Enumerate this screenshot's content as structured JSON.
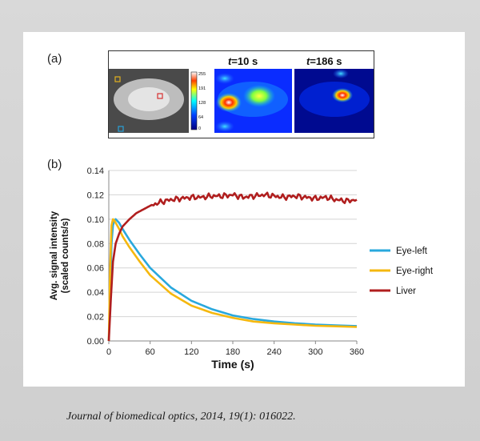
{
  "panel_a_label": "(a)",
  "panel_b_label": "(b)",
  "image_headers": {
    "t10_prefix": "t",
    "t10_value": "=10 s",
    "t186_prefix": "t",
    "t186_value": "=186 s"
  },
  "colorbar_ticks": [
    "255",
    "191",
    "128",
    "64",
    "0"
  ],
  "citation": "Journal of biomedical optics, 2014, 19(1): 016022.",
  "colors": {
    "eye_left": "#29a8dd",
    "eye_right": "#f5b80f",
    "liver": "#b01e1e",
    "roi_yellow": "#e0b020",
    "roi_red": "#d83030",
    "roi_blue": "#2aa0d8"
  },
  "chart_data": {
    "type": "line",
    "title": "",
    "xlabel": "Time (s)",
    "ylabel_line1": "Avg. signal intensity",
    "ylabel_line2": "(scaled counts/s)",
    "xlim": [
      0,
      360
    ],
    "ylim": [
      0,
      0.14
    ],
    "xticks": [
      0,
      60,
      120,
      180,
      240,
      300,
      360
    ],
    "yticks": [
      "0.00",
      "0.02",
      "0.04",
      "0.06",
      "0.08",
      "0.10",
      "0.12",
      "0.14"
    ],
    "grid": "horizontal",
    "legend_position": "right",
    "series": [
      {
        "name": "Eye-left",
        "x": [
          0,
          2,
          4,
          6,
          8,
          10,
          15,
          20,
          30,
          45,
          60,
          90,
          120,
          150,
          180,
          210,
          240,
          270,
          300,
          330,
          360
        ],
        "y": [
          0,
          0.04,
          0.08,
          0.095,
          0.099,
          0.1,
          0.097,
          0.092,
          0.083,
          0.071,
          0.06,
          0.044,
          0.033,
          0.026,
          0.021,
          0.018,
          0.016,
          0.0145,
          0.0135,
          0.0128,
          0.0122
        ]
      },
      {
        "name": "Eye-right",
        "x": [
          0,
          2,
          4,
          6,
          8,
          10,
          15,
          20,
          30,
          45,
          60,
          90,
          120,
          150,
          180,
          210,
          240,
          270,
          300,
          330,
          360
        ],
        "y": [
          0,
          0.06,
          0.095,
          0.1,
          0.099,
          0.097,
          0.092,
          0.086,
          0.077,
          0.065,
          0.054,
          0.039,
          0.029,
          0.023,
          0.019,
          0.016,
          0.0145,
          0.0135,
          0.0125,
          0.012,
          0.0115
        ]
      },
      {
        "name": "Liver",
        "x": [
          0,
          3,
          6,
          10,
          15,
          20,
          30,
          40,
          50,
          60,
          75,
          90,
          105,
          120,
          135,
          150,
          165,
          180,
          195,
          210,
          225,
          240,
          255,
          270,
          285,
          300,
          315,
          330,
          345,
          360
        ],
        "y": [
          0,
          0.035,
          0.065,
          0.08,
          0.088,
          0.094,
          0.1,
          0.105,
          0.108,
          0.111,
          0.114,
          0.116,
          0.117,
          0.118,
          0.118,
          0.119,
          0.119,
          0.12,
          0.118,
          0.119,
          0.12,
          0.119,
          0.118,
          0.119,
          0.118,
          0.117,
          0.118,
          0.116,
          0.115,
          0.116
        ]
      }
    ]
  }
}
